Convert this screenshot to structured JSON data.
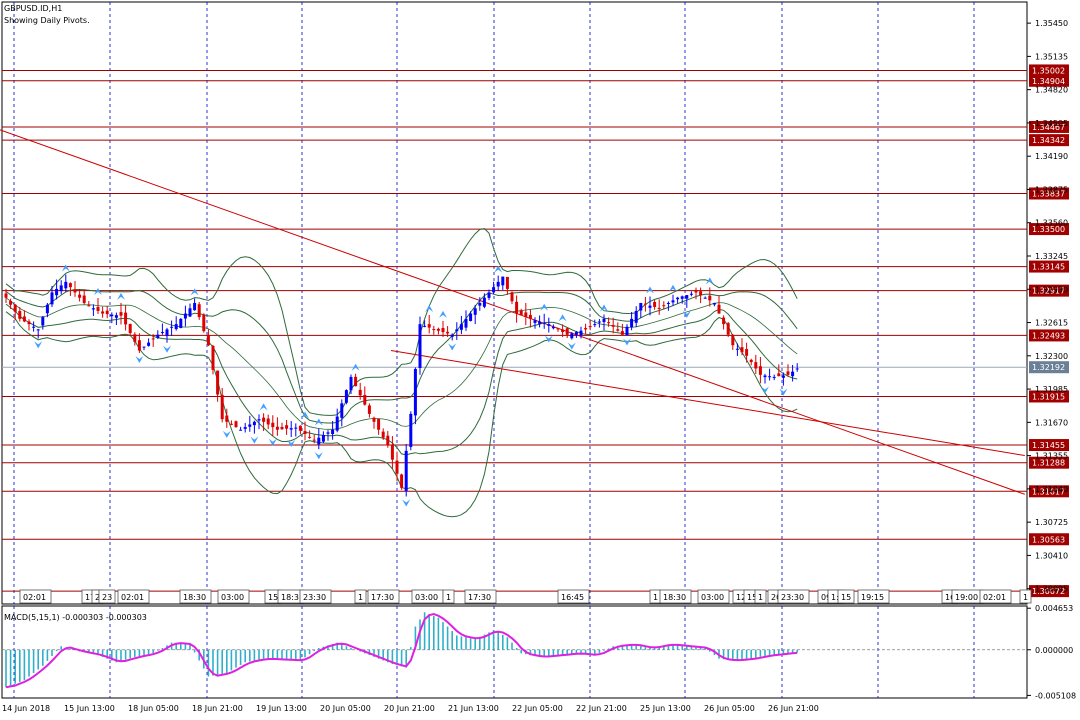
{
  "header": {
    "symbol": "GBPUSD.ID,H1",
    "subtitle": "Showing Daily Pivots."
  },
  "colors": {
    "background": "#ffffff",
    "grid": "#0000cc",
    "bull": "#0000ff",
    "bear": "#dd0000",
    "bands": "#2e6b3a",
    "pivot": "#a00000",
    "trend": "#cc0000",
    "fractal": "#3fa0ff",
    "macd_hist": "#30b0c8",
    "macd_signal": "#e020e0",
    "current_price_bg": "#6b7f96"
  },
  "chart_data": [
    {
      "type": "candlestick",
      "title": "GBPUSD.ID,H1",
      "ylim": [
        1.2995,
        1.3565
      ],
      "price_ticks": [
        "1.35450",
        "1.35135",
        "1.34820",
        "1.34505",
        "1.34190",
        "1.33875",
        "1.33560",
        "1.33245",
        "1.32930",
        "1.32615",
        "1.32300",
        "1.31985",
        "1.31670",
        "1.31355",
        "1.31040",
        "1.30725",
        "1.30410",
        "1.30095"
      ],
      "pivot_levels": [
        {
          "label": "1.35002",
          "value": 1.35002
        },
        {
          "label": "1.34904",
          "value": 1.34904
        },
        {
          "label": "1.34467",
          "value": 1.34467
        },
        {
          "label": "1.34342",
          "value": 1.34342
        },
        {
          "label": "1.33837",
          "value": 1.33837
        },
        {
          "label": "1.33500",
          "value": 1.335
        },
        {
          "label": "1.33145",
          "value": 1.33145
        },
        {
          "label": "1.32917",
          "value": 1.32917
        },
        {
          "label": "1.32493",
          "value": 1.32493
        },
        {
          "label": "1.31915",
          "value": 1.31915
        },
        {
          "label": "1.31455",
          "value": 1.31455
        },
        {
          "label": "1.31288",
          "value": 1.31288
        },
        {
          "label": "1.31017",
          "value": 1.31017
        },
        {
          "label": "1.30563",
          "value": 1.30563
        },
        {
          "label": "1.30072",
          "value": 1.30072
        }
      ],
      "current_price": {
        "label": "1.32192",
        "value": 1.32192
      },
      "x_labels": [
        "14 Jun 2018",
        "15 Jun 13:00",
        "18 Jun 05:00",
        "18 Jun 21:00",
        "19 Jun 13:00",
        "20 Jun 05:00",
        "20 Jun 21:00",
        "21 Jun 13:00",
        "22 Jun 05:00",
        "22 Jun 21:00",
        "25 Jun 13:00",
        "26 Jun 05:00",
        "26 Jun 21:00"
      ],
      "session_tags": [
        "02:01",
        "17",
        "2",
        "23",
        "02:01",
        "18:30",
        "03:00",
        "15",
        "18:3",
        "23:30",
        "1",
        "17:30",
        "03:00",
        "1",
        "17:30",
        "16:45",
        "1",
        "18:30",
        "03:00",
        "12",
        "15",
        "1",
        "20",
        "23:30",
        "09:",
        "1:",
        "15",
        "19:15",
        "16",
        "19:00",
        "02:01",
        "1"
      ],
      "trendlines": [
        {
          "name": "upper",
          "from": {
            "bar": 0,
            "price": 1.3444
          },
          "to": {
            "bar": 178,
            "price": 1.3166
          }
        },
        {
          "name": "lower",
          "from": {
            "bar": 85,
            "price": 1.3235
          },
          "to": {
            "bar": 178,
            "price": 1.3167
          }
        }
      ],
      "close_anchors": [
        [
          0,
          1.3285
        ],
        [
          3,
          1.3265
        ],
        [
          7,
          1.3255
        ],
        [
          10,
          1.329
        ],
        [
          13,
          1.33
        ],
        [
          17,
          1.328
        ],
        [
          21,
          1.327
        ],
        [
          25,
          1.3268
        ],
        [
          29,
          1.3235
        ],
        [
          33,
          1.325
        ],
        [
          37,
          1.326
        ],
        [
          41,
          1.328
        ],
        [
          44,
          1.324
        ],
        [
          47,
          1.317
        ],
        [
          51,
          1.316
        ],
        [
          55,
          1.317
        ],
        [
          59,
          1.316
        ],
        [
          63,
          1.3162
        ],
        [
          67,
          1.315
        ],
        [
          71,
          1.316
        ],
        [
          75,
          1.321
        ],
        [
          79,
          1.3175
        ],
        [
          83,
          1.3145
        ],
        [
          86,
          1.3105
        ],
        [
          88,
          1.3175
        ],
        [
          90,
          1.326
        ],
        [
          93,
          1.3255
        ],
        [
          97,
          1.325
        ],
        [
          101,
          1.327
        ],
        [
          105,
          1.329
        ],
        [
          108,
          1.3305
        ],
        [
          111,
          1.327
        ],
        [
          114,
          1.3265
        ],
        [
          118,
          1.326
        ],
        [
          122,
          1.325
        ],
        [
          126,
          1.3255
        ],
        [
          130,
          1.3265
        ],
        [
          134,
          1.325
        ],
        [
          138,
          1.328
        ],
        [
          142,
          1.3275
        ],
        [
          146,
          1.3285
        ],
        [
          150,
          1.329
        ],
        [
          154,
          1.328
        ],
        [
          158,
          1.324
        ],
        [
          161,
          1.323
        ],
        [
          164,
          1.3212
        ],
        [
          167,
          1.321
        ],
        [
          170,
          1.3212
        ],
        [
          172,
          1.3218
        ]
      ]
    },
    {
      "type": "bar",
      "title": "MACD(5,15,1) -0.000303 -0.000303",
      "series": [
        {
          "name": "MACD",
          "color_key": "macd_hist"
        },
        {
          "name": "Signal",
          "color_key": "macd_signal"
        }
      ],
      "ylim": [
        -0.0054,
        0.0049
      ],
      "ticks": [
        "0.004653",
        "0.000000",
        "-0.005108"
      ],
      "anchors": [
        [
          0,
          -0.0042
        ],
        [
          4,
          -0.0034
        ],
        [
          8,
          -0.0018
        ],
        [
          12,
          0.0004
        ],
        [
          16,
          -0.0002
        ],
        [
          20,
          -0.0006
        ],
        [
          24,
          -0.0014
        ],
        [
          28,
          -0.0008
        ],
        [
          32,
          -0.0004
        ],
        [
          36,
          0.0008
        ],
        [
          40,
          0.0006
        ],
        [
          44,
          -0.003
        ],
        [
          48,
          -0.0026
        ],
        [
          52,
          -0.0014
        ],
        [
          56,
          -0.001
        ],
        [
          60,
          -0.0011
        ],
        [
          64,
          -0.0012
        ],
        [
          68,
          0.0002
        ],
        [
          72,
          0.0008
        ],
        [
          76,
          0.0
        ],
        [
          80,
          -0.0008
        ],
        [
          84,
          -0.0016
        ],
        [
          87,
          -0.002
        ],
        [
          89,
          0.0026
        ],
        [
          91,
          0.0042
        ],
        [
          94,
          0.0036
        ],
        [
          98,
          0.0016
        ],
        [
          102,
          0.0012
        ],
        [
          106,
          0.0022
        ],
        [
          109,
          0.0014
        ],
        [
          112,
          -0.0004
        ],
        [
          116,
          -0.0008
        ],
        [
          120,
          -0.0006
        ],
        [
          124,
          -0.0004
        ],
        [
          128,
          -0.0006
        ],
        [
          132,
          0.0004
        ],
        [
          136,
          0.0006
        ],
        [
          140,
          0.0002
        ],
        [
          144,
          0.0006
        ],
        [
          148,
          0.0004
        ],
        [
          152,
          0.0002
        ],
        [
          155,
          -0.001
        ],
        [
          158,
          -0.0012
        ],
        [
          162,
          -0.001
        ],
        [
          166,
          -0.0006
        ],
        [
          170,
          -0.0004
        ],
        [
          172,
          -0.0003
        ]
      ]
    }
  ]
}
